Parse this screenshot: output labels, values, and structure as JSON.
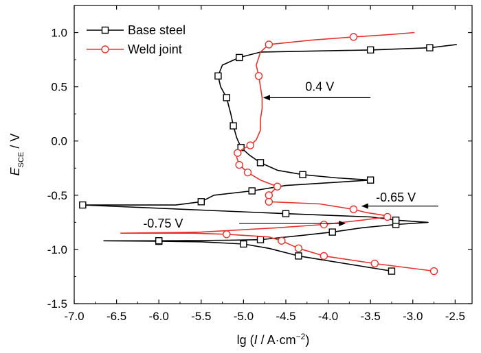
{
  "chart_data": {
    "type": "line",
    "x_axis": {
      "label_prefix": "lg (",
      "label_italic": "I",
      "label_unit": " / A·cm",
      "label_sup": "−2",
      "label_suffix": ")",
      "range": [
        -7.0,
        -2.3
      ],
      "ticks": [
        "-7.0",
        "-6.5",
        "-6.0",
        "-5.5",
        "-5.0",
        "-4.5",
        "-4.0",
        "-3.5",
        "-3.0",
        "-2.5"
      ],
      "tick_values": [
        -7.0,
        -6.5,
        -6.0,
        -5.5,
        -5.0,
        -4.5,
        -4.0,
        -3.5,
        -3.0,
        -2.5
      ]
    },
    "y_axis": {
      "label_italic": "E",
      "label_sub": "SCE",
      "label_unit": " / V",
      "range": [
        -1.5,
        1.25
      ],
      "ticks": [
        "1.0",
        "0.5",
        "0.0",
        "-0.5",
        "-1.0",
        "-1.5"
      ],
      "tick_values": [
        1.0,
        0.5,
        0.0,
        -0.5,
        -1.0,
        -1.5
      ]
    },
    "grid": false,
    "legend_position": "top-left",
    "series": [
      {
        "name": "Base steel",
        "color": "#000000",
        "marker": "square",
        "points": [
          [
            -3.25,
            -1.2
          ],
          [
            -3.8,
            -1.13
          ],
          [
            -4.35,
            -1.06
          ],
          [
            -4.7,
            -0.99
          ],
          [
            -5.0,
            -0.95
          ],
          [
            -5.5,
            -0.93
          ],
          [
            -6.0,
            -0.925
          ],
          [
            -6.65,
            -0.92
          ],
          [
            -6.0,
            -0.92
          ],
          [
            -5.2,
            -0.915
          ],
          [
            -4.8,
            -0.91
          ],
          [
            -4.3,
            -0.87
          ],
          [
            -3.95,
            -0.84
          ],
          [
            -3.6,
            -0.8
          ],
          [
            -3.2,
            -0.77
          ],
          [
            -2.82,
            -0.75
          ],
          [
            -3.2,
            -0.73
          ],
          [
            -3.5,
            -0.7
          ],
          [
            -4.5,
            -0.67
          ],
          [
            -5.4,
            -0.64
          ],
          [
            -6.9,
            -0.59
          ],
          [
            -5.8,
            -0.59
          ],
          [
            -5.5,
            -0.56
          ],
          [
            -5.35,
            -0.5
          ],
          [
            -4.9,
            -0.46
          ],
          [
            -4.5,
            -0.41
          ],
          [
            -3.5,
            -0.36
          ],
          [
            -3.9,
            -0.34
          ],
          [
            -4.3,
            -0.31
          ],
          [
            -4.6,
            -0.27
          ],
          [
            -4.8,
            -0.2
          ],
          [
            -4.93,
            -0.13
          ],
          [
            -5.03,
            -0.06
          ],
          [
            -5.08,
            0.03
          ],
          [
            -5.12,
            0.14
          ],
          [
            -5.15,
            0.25
          ],
          [
            -5.2,
            0.4
          ],
          [
            -5.27,
            0.5
          ],
          [
            -5.3,
            0.6
          ],
          [
            -5.25,
            0.7
          ],
          [
            -5.05,
            0.77
          ],
          [
            -4.8,
            0.82
          ],
          [
            -3.5,
            0.84
          ],
          [
            -3.15,
            0.85
          ],
          [
            -2.8,
            0.86
          ],
          [
            -2.48,
            0.89
          ]
        ]
      },
      {
        "name": "Weld joint",
        "color": "#e8302a",
        "marker": "circle",
        "points": [
          [
            -2.75,
            -1.2
          ],
          [
            -3.45,
            -1.13
          ],
          [
            -4.05,
            -1.06
          ],
          [
            -4.35,
            -0.99
          ],
          [
            -4.55,
            -0.92
          ],
          [
            -4.7,
            -0.885
          ],
          [
            -5.2,
            -0.86
          ],
          [
            -5.6,
            -0.85
          ],
          [
            -6.45,
            -0.85
          ],
          [
            -5.5,
            -0.84
          ],
          [
            -4.6,
            -0.8
          ],
          [
            -4.05,
            -0.77
          ],
          [
            -3.6,
            -0.73
          ],
          [
            -3.3,
            -0.7
          ],
          [
            -3.3,
            -0.69
          ],
          [
            -3.55,
            -0.66
          ],
          [
            -3.7,
            -0.63
          ],
          [
            -4.1,
            -0.58
          ],
          [
            -4.7,
            -0.56
          ],
          [
            -4.7,
            -0.5
          ],
          [
            -4.6,
            -0.42
          ],
          [
            -4.8,
            -0.36
          ],
          [
            -4.95,
            -0.29
          ],
          [
            -5.05,
            -0.22
          ],
          [
            -5.08,
            -0.15
          ],
          [
            -5.07,
            -0.11
          ],
          [
            -5.0,
            -0.07
          ],
          [
            -4.92,
            -0.04
          ],
          [
            -4.85,
            0.01
          ],
          [
            -4.8,
            0.1
          ],
          [
            -4.8,
            0.2
          ],
          [
            -4.78,
            0.3
          ],
          [
            -4.78,
            0.4
          ],
          [
            -4.8,
            0.5
          ],
          [
            -4.82,
            0.6
          ],
          [
            -4.85,
            0.7
          ],
          [
            -4.82,
            0.77
          ],
          [
            -4.8,
            0.82
          ],
          [
            -4.7,
            0.89
          ],
          [
            -4.2,
            0.93
          ],
          [
            -3.7,
            0.96
          ],
          [
            -3.3,
            0.98
          ],
          [
            -2.98,
            1.0
          ]
        ],
        "marker_points": [
          [
            -2.75,
            -1.2
          ],
          [
            -3.45,
            -1.13
          ],
          [
            -4.05,
            -1.06
          ],
          [
            -4.35,
            -0.99
          ],
          [
            -4.55,
            -0.92
          ],
          [
            -5.2,
            -0.86
          ],
          [
            -4.05,
            -0.77
          ],
          [
            -3.3,
            -0.7
          ],
          [
            -3.7,
            -0.63
          ],
          [
            -4.7,
            -0.56
          ],
          [
            -4.7,
            -0.5
          ],
          [
            -4.6,
            -0.42
          ],
          [
            -4.95,
            -0.29
          ],
          [
            -5.05,
            -0.22
          ],
          [
            -5.07,
            -0.11
          ],
          [
            -4.92,
            -0.04
          ],
          [
            -4.82,
            0.6
          ],
          [
            -4.7,
            0.89
          ],
          [
            -3.7,
            0.96
          ]
        ]
      }
    ],
    "annotations": [
      {
        "text": "0.4 V",
        "x": -4.1,
        "y": 0.5,
        "arrow_from": [
          -3.5,
          0.4
        ],
        "arrow_to": [
          -4.76,
          0.4
        ]
      },
      {
        "text": "-0.65 V",
        "x": -3.2,
        "y": -0.52,
        "arrow_from": [
          -2.7,
          -0.6
        ],
        "arrow_to": [
          -3.6,
          -0.6
        ]
      },
      {
        "text": "-0.75 V",
        "x": -5.95,
        "y": -0.76,
        "arrow_from": [
          -5.05,
          -0.76
        ],
        "arrow_to": [
          -3.8,
          -0.76
        ]
      }
    ]
  }
}
